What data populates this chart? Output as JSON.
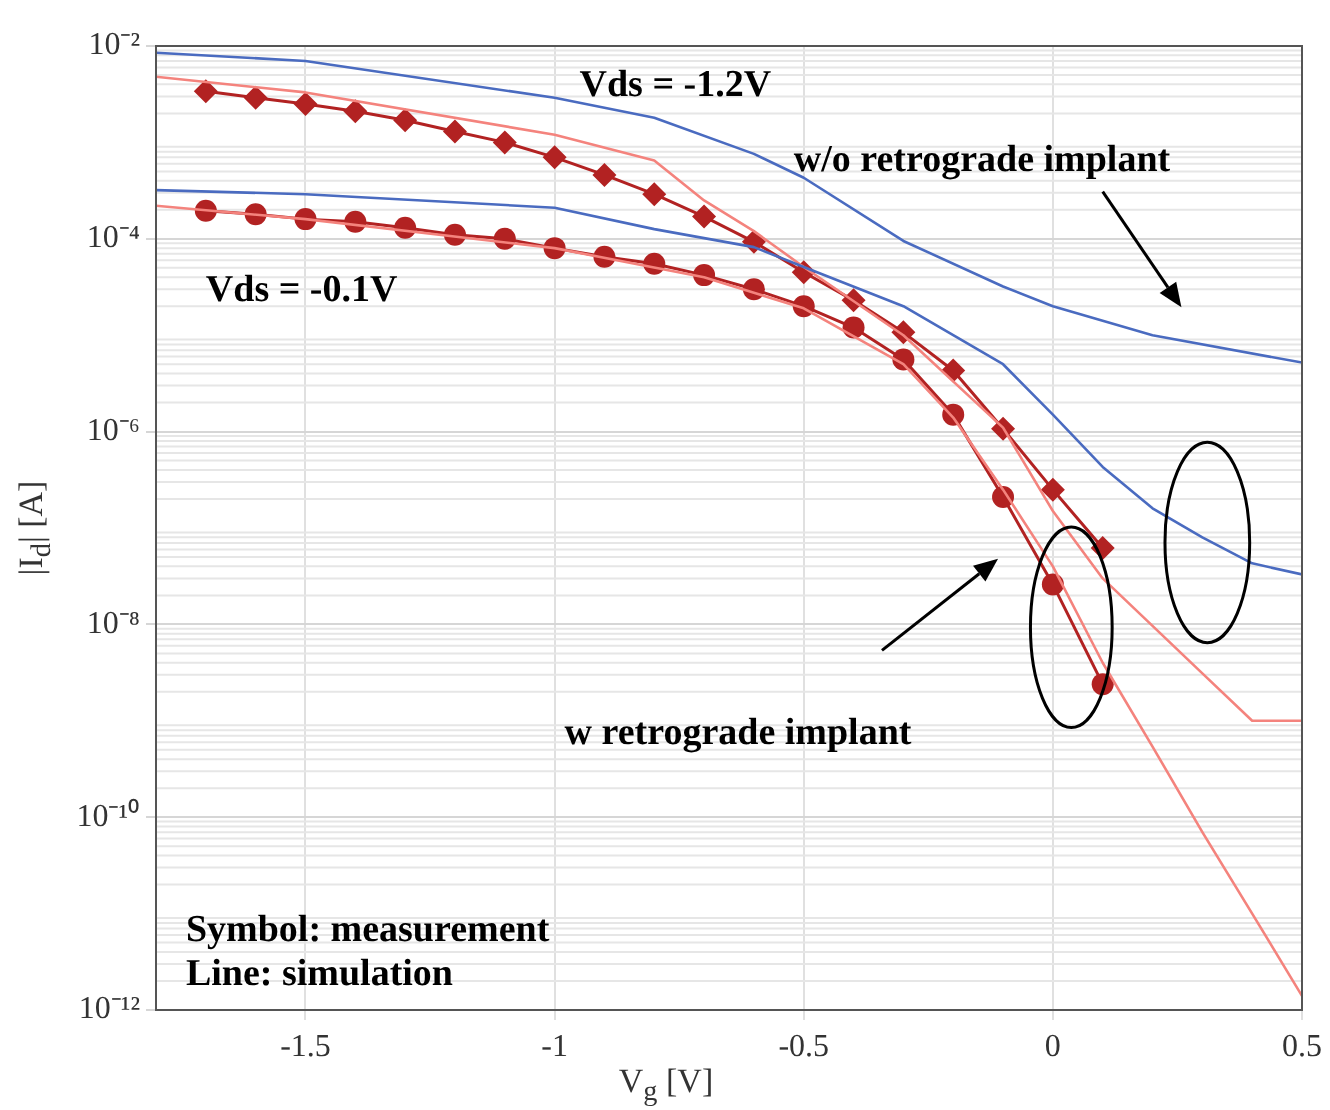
{
  "chart_data": {
    "type": "line",
    "xlabel": "V$_{g}$ [V]",
    "ylabel": "|I$_{d}$| [A]",
    "xlim": [
      -1.8,
      0.5
    ],
    "xticks": [
      -1.5,
      -1,
      -0.5,
      0,
      0.5
    ],
    "ylim": [
      1e-12,
      0.01
    ],
    "log": "y",
    "yticks": [
      {
        "value": 1e-12,
        "label": "10⁻¹²"
      },
      {
        "value": 1e-10,
        "label": "10⁻¹⁰"
      },
      {
        "value": 1e-08,
        "label": "10⁻⁸"
      },
      {
        "value": 1e-06,
        "label": "10⁻⁶"
      },
      {
        "value": 0.0001,
        "label": "10⁻⁴"
      },
      {
        "value": 0.01,
        "label": "10⁻²"
      }
    ],
    "grid": true,
    "legend": false,
    "annotations": [
      "Vds = -1.2V",
      "w/o retrograde implant",
      "Vds = -0.1V",
      "w retrograde implant",
      "Symbol: measurement",
      "Line: simulation"
    ],
    "series": [
      {
        "color": "#4a6bc0",
        "marker": "none",
        "x": [
          -1.8,
          -1.5,
          -1,
          -0.8,
          -0.6,
          -0.5,
          -0.3,
          -0.1,
          0,
          0.2,
          0.5
        ],
        "values": [
          0.0085,
          0.007,
          0.0029,
          0.0018,
          0.00076,
          0.00043,
          9.5e-05,
          3.2e-05,
          2e-05,
          1e-05,
          5.2e-06
        ]
      },
      {
        "color": "#4a6bc0",
        "marker": "none",
        "x": [
          -1.8,
          -1.5,
          -1,
          -0.8,
          -0.6,
          -0.5,
          -0.3,
          -0.2,
          -0.1,
          0,
          0.1,
          0.2,
          0.3,
          0.4,
          0.5
        ],
        "values": [
          0.00032,
          0.00029,
          0.00021,
          0.000126,
          8.2e-05,
          5.1e-05,
          2e-05,
          1e-05,
          5e-06,
          1.5e-06,
          4.3e-07,
          1.6e-07,
          8e-08,
          4.3e-08,
          3.3e-08
        ]
      },
      {
        "color": "#f4837d",
        "marker": "none",
        "x": [
          -1.8,
          -1.5,
          -1,
          -0.8,
          -0.7,
          -0.6,
          -0.5,
          -0.3,
          -0.1,
          0,
          0.1,
          0.3,
          0.4,
          0.5
        ],
        "values": [
          0.0048,
          0.0033,
          0.0012,
          0.00065,
          0.00025,
          0.00012,
          5.1e-05,
          1e-05,
          1.1e-06,
          1.5e-07,
          3e-08,
          3.1e-09,
          1e-09,
          1e-09
        ]
      },
      {
        "color": "#f4837d",
        "marker": "none",
        "x": [
          -1.8,
          -1.5,
          -1,
          -0.7,
          -0.5,
          -0.3,
          -0.2,
          -0.1,
          0,
          0.1,
          0.2,
          0.3,
          0.4,
          0.5
        ],
        "values": [
          0.00022,
          0.00016,
          8e-05,
          4e-05,
          1.9e-05,
          5e-06,
          1.4e-06,
          2.5e-07,
          4e-08,
          4e-09,
          5.4e-10,
          7e-11,
          1e-11,
          1.4e-12
        ]
      },
      {
        "color": "#b22222",
        "marker": "diamond",
        "x": [
          -1.7,
          -1.6,
          -1.5,
          -1.4,
          -1.3,
          -1.2,
          -1.1,
          -1,
          -0.9,
          -0.8,
          -0.7,
          -0.6,
          -0.5,
          -0.4,
          -0.3,
          -0.2,
          -0.1,
          0,
          0.1
        ],
        "values": [
          0.0034,
          0.0029,
          0.0025,
          0.0021,
          0.0017,
          0.0013,
          0.001,
          0.0007,
          0.00046,
          0.00029,
          0.00017,
          9.3e-05,
          4.5e-05,
          2.3e-05,
          1.07e-05,
          4.3e-06,
          1.07e-06,
          2.5e-07,
          6.2e-08
        ]
      },
      {
        "color": "#b22222",
        "marker": "circle",
        "x": [
          -1.7,
          -1.6,
          -1.5,
          -1.4,
          -1.3,
          -1.2,
          -1.1,
          -1,
          -0.9,
          -0.8,
          -0.7,
          -0.6,
          -0.5,
          -0.4,
          -0.3,
          -0.2,
          -0.1,
          0,
          0.1
        ],
        "values": [
          0.000195,
          0.00018,
          0.00016,
          0.00015,
          0.00013,
          0.00011,
          0.0001,
          8e-05,
          6.5e-05,
          5.5e-05,
          4.2e-05,
          3e-05,
          2e-05,
          1.2e-05,
          5.6e-06,
          1.5e-06,
          2.1e-07,
          2.6e-08,
          2.4e-09
        ]
      }
    ]
  }
}
